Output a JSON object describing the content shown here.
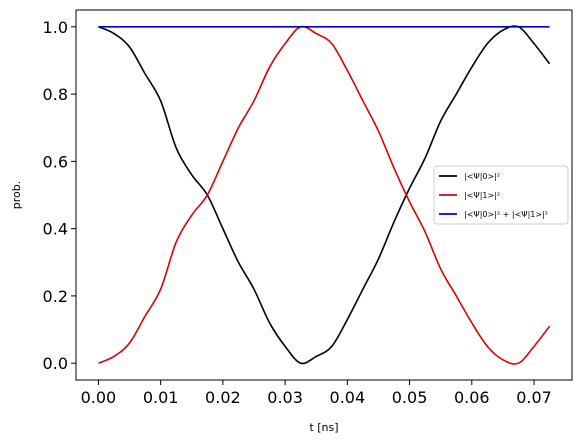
{
  "chart_data": {
    "type": "line",
    "title": "",
    "xlabel": "t [ns]",
    "ylabel": "prob.",
    "xlim": [
      -0.0036,
      0.0761
    ],
    "ylim": [
      -0.05,
      1.05
    ],
    "xticks": [
      0.0,
      0.01,
      0.02,
      0.03,
      0.04,
      0.05,
      0.06,
      0.07
    ],
    "xtick_labels": [
      "0.00",
      "0.01",
      "0.02",
      "0.03",
      "0.04",
      "0.05",
      "0.06",
      "0.07"
    ],
    "yticks": [
      0.0,
      0.2,
      0.4,
      0.6,
      0.8,
      1.0
    ],
    "ytick_labels": [
      "0.0",
      "0.2",
      "0.4",
      "0.6",
      "0.8",
      "1.0"
    ],
    "grid": false,
    "legend_position": "center-right",
    "series": [
      {
        "name": "|<Ψ|0>|²",
        "color": "#000000",
        "x": [
          0.0,
          0.0025,
          0.005,
          0.0075,
          0.01,
          0.0125,
          0.015,
          0.0175,
          0.02,
          0.0225,
          0.025,
          0.0275,
          0.03,
          0.0325,
          0.035,
          0.0375,
          0.04,
          0.0425,
          0.045,
          0.0475,
          0.05,
          0.0525,
          0.055,
          0.0575,
          0.06,
          0.0625,
          0.065,
          0.0675,
          0.07,
          0.0725
        ],
        "y": [
          1.0,
          0.98,
          0.94,
          0.86,
          0.78,
          0.64,
          0.56,
          0.5,
          0.4,
          0.3,
          0.22,
          0.12,
          0.05,
          0.0,
          0.02,
          0.05,
          0.13,
          0.22,
          0.31,
          0.42,
          0.52,
          0.61,
          0.72,
          0.8,
          0.88,
          0.95,
          0.99,
          1.0,
          0.95,
          0.89
        ]
      },
      {
        "name": "|<Ψ|1>|²",
        "color": "#e00000",
        "x": [
          0.0,
          0.0025,
          0.005,
          0.0075,
          0.01,
          0.0125,
          0.015,
          0.0175,
          0.02,
          0.0225,
          0.025,
          0.0275,
          0.03,
          0.0325,
          0.035,
          0.0375,
          0.04,
          0.0425,
          0.045,
          0.0475,
          0.05,
          0.0525,
          0.055,
          0.0575,
          0.06,
          0.0625,
          0.065,
          0.0675,
          0.07,
          0.0725
        ],
        "y": [
          0.0,
          0.02,
          0.06,
          0.14,
          0.22,
          0.36,
          0.44,
          0.5,
          0.6,
          0.7,
          0.78,
          0.88,
          0.95,
          1.0,
          0.98,
          0.95,
          0.87,
          0.78,
          0.69,
          0.58,
          0.48,
          0.39,
          0.28,
          0.2,
          0.12,
          0.05,
          0.01,
          0.0,
          0.05,
          0.11
        ]
      },
      {
        "name": "|<Ψ|0>|² + |<Ψ|1>|²",
        "color": "#0000cc",
        "x": [
          0.0,
          0.0725
        ],
        "y": [
          1.0,
          1.0
        ]
      }
    ]
  }
}
